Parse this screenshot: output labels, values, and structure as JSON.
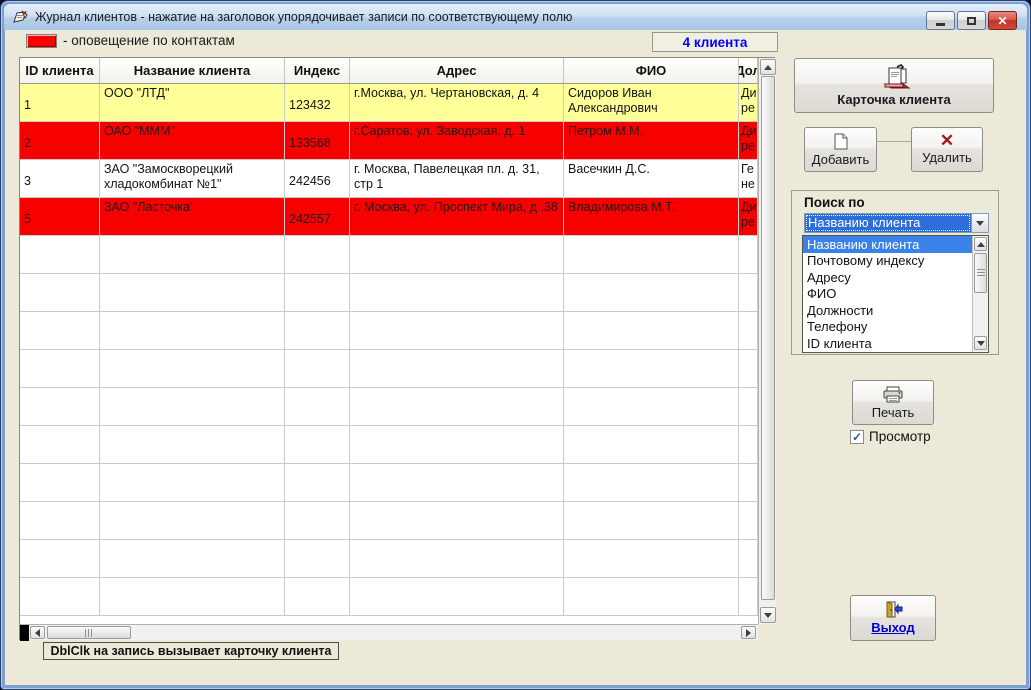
{
  "window": {
    "title": "Журнал клиентов - нажатие на заголовок упорядочивает записи по соответствующему полю"
  },
  "legend": {
    "label": "- оповещение по контактам",
    "swatch_color": "#ff0000"
  },
  "counter": {
    "label": "4 клиента",
    "text_color": "#0000ff"
  },
  "table": {
    "columns": [
      "ID клиента",
      "Название клиента",
      "Индекс",
      "Адрес",
      "ФИО",
      "Дол"
    ],
    "rows": [
      {
        "id": "1",
        "name": "ООО \"ЛТД\"",
        "index": "123432",
        "address": "г.Москва, ул. Чертановская, д. 4",
        "fio": "Сидоров Иван Александрович",
        "position": "Ди ре",
        "highlight": "yellow"
      },
      {
        "id": "2",
        "name": "ОАО \"МММ\"",
        "index": "133568",
        "address": "г.Саратов, ул. Заводская, д. 1",
        "fio": "Петром М.М.",
        "position": "Ди ре",
        "highlight": "red"
      },
      {
        "id": "3",
        "name": "ЗАО \"Замоскворецкий хладокомбинат №1\"",
        "index": "242456",
        "address": "г. Москва, Павелецкая пл. д. 31, стр 1",
        "fio": "Васечкин Д.С.",
        "position": "Ге не",
        "highlight": "none"
      },
      {
        "id": "5",
        "name": "ЗАО \"Ласточка\"",
        "index": "242557",
        "address": "г. Москва, ул. Проспект Мира, д .38",
        "fio": "Владимирова М.Т.",
        "position": "Ди ре",
        "highlight": "red"
      }
    ],
    "empty_rows": 10,
    "row_colors": {
      "alert": "#f60000",
      "selected": "#ffff99"
    }
  },
  "buttons": {
    "card": "Карточка клиента",
    "add": "Добавить",
    "delete": "Удалить",
    "print": "Печать",
    "exit": "Выход"
  },
  "search": {
    "group_label": "Поиск по",
    "selected": "Названию клиента",
    "options": [
      "Названию клиента",
      "Почтовому индексу",
      "Адресу",
      "ФИО",
      "Должности",
      "Телефону",
      "ID клиента"
    ]
  },
  "preview": {
    "label": "Просмотр",
    "checked": true
  },
  "footer": {
    "hint": "DblClk на запись вызывает карточку клиента"
  },
  "icons": {
    "close": "✕",
    "delete_x": "✕",
    "check": "✓"
  }
}
